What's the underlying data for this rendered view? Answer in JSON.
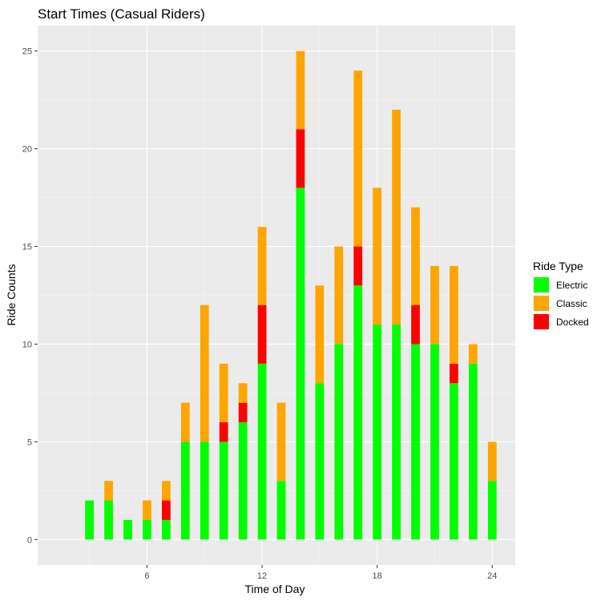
{
  "chart_data": {
    "type": "bar",
    "stacked": true,
    "title": "Start Times (Casual Riders)",
    "xlabel": "Time of Day",
    "ylabel": "Ride Counts",
    "xlim": [
      0.3,
      25.2
    ],
    "ylim": [
      -1.3,
      26.3
    ],
    "x_ticks": [
      6,
      12,
      18,
      24
    ],
    "y_ticks": [
      0,
      5,
      10,
      15,
      20,
      25
    ],
    "grid": true,
    "legend_position": "right",
    "legend_title": "Ride Type",
    "x": [
      3,
      4,
      5,
      6,
      7,
      8,
      9,
      10,
      11,
      12,
      13,
      14,
      15,
      16,
      17,
      18,
      19,
      20,
      21,
      22,
      23,
      24
    ],
    "series": [
      {
        "name": "Electric",
        "color": "#00ff00",
        "values": [
          2,
          2,
          1,
          1,
          1,
          5,
          5,
          5,
          6,
          9,
          3,
          18,
          8,
          10,
          13,
          11,
          11,
          10,
          10,
          8,
          9,
          3
        ]
      },
      {
        "name": "Docked",
        "color": "#ff0000",
        "values": [
          0,
          0,
          0,
          0,
          1,
          0,
          0,
          1,
          1,
          3,
          0,
          3,
          0,
          0,
          2,
          0,
          0,
          2,
          0,
          1,
          0,
          0
        ]
      },
      {
        "name": "Classic",
        "color": "#ffa500",
        "values": [
          0,
          1,
          0,
          1,
          1,
          2,
          7,
          3,
          1,
          4,
          4,
          4,
          5,
          5,
          9,
          7,
          11,
          5,
          4,
          5,
          1,
          2
        ]
      }
    ],
    "legend_order": [
      "Electric",
      "Classic",
      "Docked"
    ]
  }
}
